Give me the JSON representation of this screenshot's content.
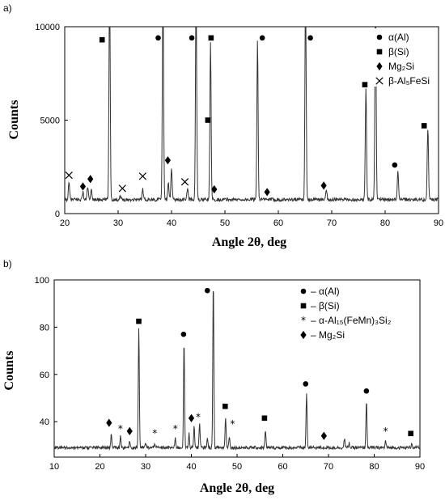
{
  "chart_data": [
    {
      "type": "line",
      "panel_label": "a)",
      "xlabel": "Angle 2θ, deg",
      "ylabel": "Counts",
      "xlim": [
        20,
        90
      ],
      "ylim": [
        0,
        10000
      ],
      "x_ticks": [
        20,
        30,
        40,
        50,
        60,
        70,
        80,
        90
      ],
      "y_ticks": [
        0,
        5000,
        10000
      ],
      "grid": false,
      "legend_position": "top-right",
      "legend": [
        {
          "symbol": "circle",
          "label": "α(Al)"
        },
        {
          "symbol": "square",
          "label": "β(Si)"
        },
        {
          "symbol": "diamond",
          "label": "Mg₂Si"
        },
        {
          "symbol": "cross",
          "label": "β-Al₅FeSi"
        }
      ],
      "baseline": 750,
      "peaks": [
        {
          "x": 20.8,
          "y": 1650
        },
        {
          "x": 23.4,
          "y": 1150
        },
        {
          "x": 24.3,
          "y": 1450
        },
        {
          "x": 25.0,
          "y": 1250
        },
        {
          "x": 28.4,
          "y": 12000
        },
        {
          "x": 30.4,
          "y": 950
        },
        {
          "x": 34.6,
          "y": 1350
        },
        {
          "x": 38.4,
          "y": 12000
        },
        {
          "x": 39.4,
          "y": 1650
        },
        {
          "x": 40.0,
          "y": 2500
        },
        {
          "x": 43.0,
          "y": 1350
        },
        {
          "x": 44.6,
          "y": 12000
        },
        {
          "x": 47.3,
          "y": 9200
        },
        {
          "x": 56.1,
          "y": 9300
        },
        {
          "x": 65.1,
          "y": 12000
        },
        {
          "x": 69.0,
          "y": 1300
        },
        {
          "x": 76.4,
          "y": 6800
        },
        {
          "x": 78.2,
          "y": 12000
        },
        {
          "x": 82.4,
          "y": 2300
        },
        {
          "x": 88.0,
          "y": 4600
        }
      ],
      "markers": [
        {
          "symbol": "cross",
          "x": 20.8,
          "y": 2050
        },
        {
          "symbol": "diamond",
          "x": 23.4,
          "y": 1450
        },
        {
          "symbol": "diamond",
          "x": 24.8,
          "y": 1850
        },
        {
          "symbol": "square",
          "x": 27.0,
          "y": 9300
        },
        {
          "symbol": "cross",
          "x": 30.8,
          "y": 1350
        },
        {
          "symbol": "cross",
          "x": 34.6,
          "y": 2000
        },
        {
          "symbol": "circle",
          "x": 37.5,
          "y": 9400
        },
        {
          "symbol": "diamond",
          "x": 39.3,
          "y": 2850
        },
        {
          "symbol": "cross",
          "x": 42.5,
          "y": 1700
        },
        {
          "symbol": "circle",
          "x": 43.8,
          "y": 9400
        },
        {
          "symbol": "square",
          "x": 46.8,
          "y": 5000
        },
        {
          "symbol": "square",
          "x": 47.4,
          "y": 9400
        },
        {
          "symbol": "diamond",
          "x": 48.0,
          "y": 1300
        },
        {
          "symbol": "circle",
          "x": 57.0,
          "y": 9400
        },
        {
          "symbol": "diamond",
          "x": 57.9,
          "y": 1150
        },
        {
          "symbol": "circle",
          "x": 66.0,
          "y": 9400
        },
        {
          "symbol": "diamond",
          "x": 68.5,
          "y": 1500
        },
        {
          "symbol": "square",
          "x": 76.2,
          "y": 6900
        },
        {
          "symbol": "circle",
          "x": 81.8,
          "y": 2600
        },
        {
          "symbol": "square",
          "x": 87.3,
          "y": 4700
        }
      ]
    },
    {
      "type": "line",
      "panel_label": "b)",
      "xlabel": "Angle 2θ, deg",
      "ylabel": "Counts",
      "xlim": [
        10,
        90
      ],
      "ylim": [
        25,
        100
      ],
      "x_ticks": [
        10,
        20,
        30,
        40,
        50,
        60,
        70,
        80,
        90
      ],
      "y_ticks": [
        40,
        60,
        80,
        100
      ],
      "grid": false,
      "legend_position": "top-right",
      "legend": [
        {
          "symbol": "circle",
          "label": "– α(Al)"
        },
        {
          "symbol": "square",
          "label": "– β(Si)"
        },
        {
          "symbol": "asterisk",
          "label": "– α-Al₁₅(FeMn)₃Si₂"
        },
        {
          "symbol": "diamond",
          "label": "– Mg₂Si"
        }
      ],
      "baseline": 29,
      "peaks": [
        {
          "x": 22.5,
          "y": 35
        },
        {
          "x": 24.5,
          "y": 34
        },
        {
          "x": 26.5,
          "y": 32
        },
        {
          "x": 28.5,
          "y": 80
        },
        {
          "x": 30.0,
          "y": 31
        },
        {
          "x": 32.0,
          "y": 31
        },
        {
          "x": 36.5,
          "y": 33
        },
        {
          "x": 38.4,
          "y": 74
        },
        {
          "x": 39.5,
          "y": 35
        },
        {
          "x": 40.6,
          "y": 38
        },
        {
          "x": 41.8,
          "y": 39
        },
        {
          "x": 43.5,
          "y": 33
        },
        {
          "x": 44.8,
          "y": 100
        },
        {
          "x": 47.5,
          "y": 42
        },
        {
          "x": 48.3,
          "y": 34
        },
        {
          "x": 56.2,
          "y": 36
        },
        {
          "x": 65.2,
          "y": 52
        },
        {
          "x": 73.5,
          "y": 33
        },
        {
          "x": 74.5,
          "y": 31
        },
        {
          "x": 78.3,
          "y": 49
        },
        {
          "x": 82.5,
          "y": 32
        },
        {
          "x": 88.2,
          "y": 31
        }
      ],
      "markers": [
        {
          "symbol": "diamond",
          "x": 22.0,
          "y": 39.5
        },
        {
          "symbol": "asterisk",
          "x": 24.5,
          "y": 37
        },
        {
          "symbol": "diamond",
          "x": 26.5,
          "y": 36
        },
        {
          "symbol": "square",
          "x": 28.5,
          "y": 82.5
        },
        {
          "symbol": "asterisk",
          "x": 32.0,
          "y": 35
        },
        {
          "symbol": "asterisk",
          "x": 36.5,
          "y": 37
        },
        {
          "symbol": "circle",
          "x": 38.3,
          "y": 77
        },
        {
          "symbol": "diamond",
          "x": 40.0,
          "y": 41.5
        },
        {
          "symbol": "asterisk",
          "x": 41.5,
          "y": 42
        },
        {
          "symbol": "circle",
          "x": 43.5,
          "y": 95.5
        },
        {
          "symbol": "square",
          "x": 47.4,
          "y": 46.5
        },
        {
          "symbol": "asterisk",
          "x": 49.0,
          "y": 39
        },
        {
          "symbol": "square",
          "x": 56.0,
          "y": 41.5
        },
        {
          "symbol": "circle",
          "x": 65.0,
          "y": 56
        },
        {
          "symbol": "diamond",
          "x": 69.0,
          "y": 34
        },
        {
          "symbol": "circle",
          "x": 78.3,
          "y": 53
        },
        {
          "symbol": "asterisk",
          "x": 82.5,
          "y": 36
        },
        {
          "symbol": "square",
          "x": 88.0,
          "y": 35
        }
      ]
    }
  ]
}
